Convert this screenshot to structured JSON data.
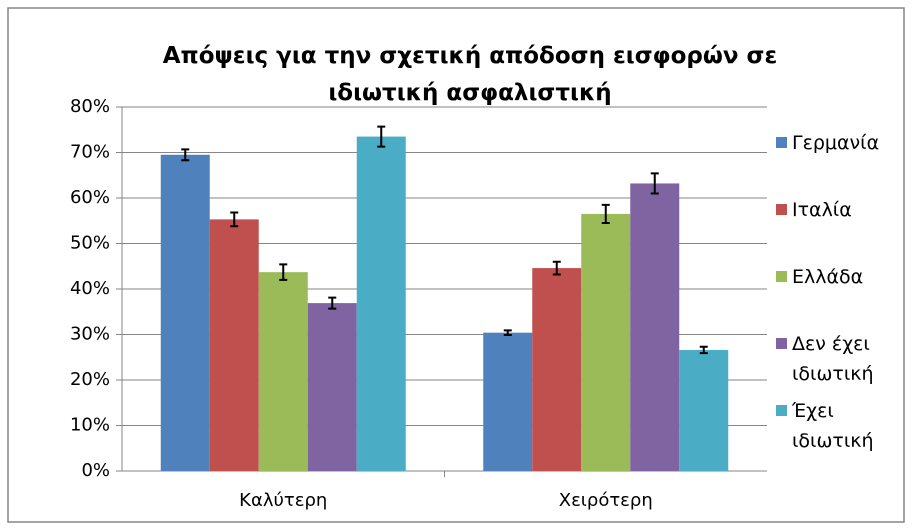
{
  "chart_data": {
    "type": "bar",
    "title": "Απόψεις για την σχετική απόδοση εισφορών σε ιδιωτική ασφαλιστική",
    "categories": [
      "Καλύτερη",
      "Χειρότερη"
    ],
    "series": [
      {
        "name": "Γερμανία",
        "color": "#4f81bd",
        "values": [
          69.5,
          30.4
        ],
        "errors": [
          1.2,
          0.5
        ]
      },
      {
        "name": "Ιταλία",
        "color": "#c0504d",
        "values": [
          55.3,
          44.6
        ],
        "errors": [
          1.5,
          1.4
        ]
      },
      {
        "name": "Ελλάδα",
        "color": "#9bbb59",
        "values": [
          43.7,
          56.5
        ],
        "errors": [
          1.7,
          2.0
        ]
      },
      {
        "name": "Δεν έχει ιδιωτική",
        "color": "#8064a2",
        "values": [
          36.9,
          63.2
        ],
        "errors": [
          1.2,
          2.2
        ]
      },
      {
        "name": "Έχει ιδιωτική",
        "color": "#4bacc6",
        "values": [
          73.5,
          26.6
        ],
        "errors": [
          2.2,
          0.7
        ]
      }
    ],
    "ylim": [
      0,
      80
    ],
    "yticks": [
      {
        "value": 0,
        "label": "0%"
      },
      {
        "value": 10,
        "label": "10%"
      },
      {
        "value": 20,
        "label": "20%"
      },
      {
        "value": 30,
        "label": "30%"
      },
      {
        "value": 40,
        "label": "40%"
      },
      {
        "value": 50,
        "label": "50%"
      },
      {
        "value": 60,
        "label": "60%"
      },
      {
        "value": 70,
        "label": "70%"
      },
      {
        "value": 80,
        "label": "80%"
      }
    ],
    "grid": true,
    "legend": "right"
  }
}
